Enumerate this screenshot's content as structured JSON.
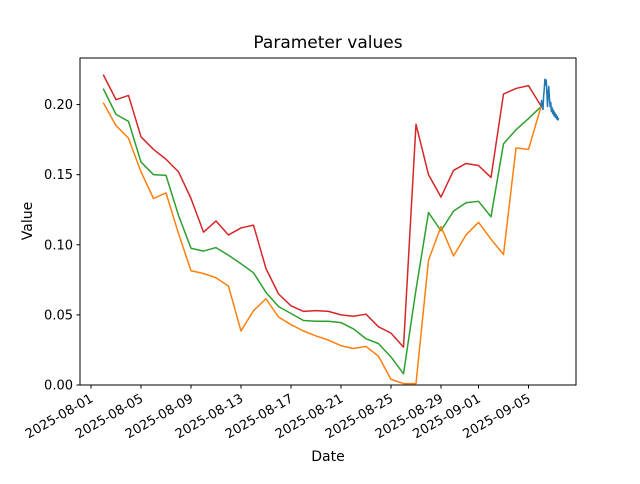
{
  "figure": {
    "title": "Parameter values",
    "xlabel": "Date",
    "ylabel": "Value"
  },
  "chart_data": {
    "type": "line",
    "title": "Parameter values",
    "xlabel": "Date",
    "ylabel": "Value",
    "grid": false,
    "legend": "none",
    "x_axis": {
      "origin_date": "2025-08-01",
      "unit": "days since 2025-08-01",
      "lim_days": [
        -0.88,
        38.8
      ],
      "tick_days": [
        0,
        4,
        8,
        12,
        16,
        20,
        24,
        28,
        31,
        35
      ],
      "tick_labels": [
        "2025-08-01",
        "2025-08-05",
        "2025-08-09",
        "2025-08-13",
        "2025-08-17",
        "2025-08-21",
        "2025-08-25",
        "2025-08-29",
        "2025-09-01",
        "2025-09-05"
      ],
      "tick_label_rotation_deg": 30
    },
    "y_axis": {
      "lim": [
        0,
        0.2332
      ],
      "ticks": [
        0,
        0.05,
        0.1,
        0.15,
        0.2
      ],
      "tick_labels": [
        "0.00",
        "0.05",
        "0.10",
        "0.15",
        "0.20"
      ]
    },
    "series": [
      {
        "name": "red-daily-series",
        "color": "#d62728",
        "x": [
          1,
          2,
          3,
          4,
          5,
          6,
          7,
          8,
          9,
          10,
          11,
          12,
          13,
          14,
          15,
          16,
          17,
          18,
          19,
          20,
          21,
          22,
          23,
          24,
          25,
          26,
          27,
          28,
          29,
          30,
          31,
          32,
          33,
          34,
          35,
          36
        ],
        "y": [
          0.221,
          0.2035,
          0.2065,
          0.177,
          0.168,
          0.161,
          0.152,
          0.133,
          0.109,
          0.117,
          0.107,
          0.112,
          0.114,
          0.083,
          0.065,
          0.0565,
          0.0525,
          0.053,
          0.0525,
          0.05,
          0.049,
          0.0505,
          0.0415,
          0.037,
          0.027,
          0.186,
          0.15,
          0.134,
          0.153,
          0.158,
          0.1565,
          0.148,
          0.2075,
          0.2115,
          0.2135,
          0.199
        ]
      },
      {
        "name": "green-daily-series",
        "color": "#2ca02c",
        "x": [
          1,
          2,
          3,
          4,
          5,
          6,
          7,
          8,
          9,
          10,
          11,
          12,
          13,
          14,
          15,
          16,
          17,
          18,
          19,
          20,
          21,
          22,
          23,
          24,
          25,
          26,
          27,
          28,
          29,
          30,
          31,
          32,
          33,
          34,
          35,
          36
        ],
        "y": [
          0.211,
          0.193,
          0.188,
          0.159,
          0.15,
          0.1495,
          0.121,
          0.0975,
          0.0955,
          0.098,
          0.0925,
          0.0865,
          0.08,
          0.066,
          0.056,
          0.051,
          0.046,
          0.0455,
          0.0455,
          0.0445,
          0.04,
          0.033,
          0.0295,
          0.02,
          0.008,
          0.068,
          0.123,
          0.11,
          0.124,
          0.13,
          0.131,
          0.12,
          0.172,
          0.182,
          0.19,
          0.1985
        ]
      },
      {
        "name": "orange-daily-series",
        "color": "#ff7f0e",
        "x": [
          1,
          2,
          3,
          4,
          5,
          6,
          7,
          8,
          9,
          10,
          11,
          12,
          13,
          14,
          15,
          16,
          17,
          18,
          19,
          20,
          21,
          22,
          23,
          24,
          25,
          26,
          27,
          28,
          29,
          30,
          31,
          32,
          33,
          34,
          35,
          36
        ],
        "y": [
          0.201,
          0.185,
          0.176,
          0.152,
          0.133,
          0.137,
          0.108,
          0.0815,
          0.0795,
          0.0765,
          0.0705,
          0.0385,
          0.053,
          0.0615,
          0.0485,
          0.043,
          0.0385,
          0.035,
          0.032,
          0.028,
          0.026,
          0.0275,
          0.0205,
          0.004,
          0.001,
          0.001,
          0.089,
          0.113,
          0.092,
          0.107,
          0.116,
          0.104,
          0.093,
          0.169,
          0.168,
          0.1985
        ]
      },
      {
        "name": "blue-highfreq-series",
        "color": "#1f77b4",
        "x": [
          36.0,
          36.05,
          36.1,
          36.16,
          36.21,
          36.26,
          36.31,
          36.36,
          36.42,
          36.47,
          36.52,
          36.57,
          36.62,
          36.68,
          36.73,
          36.78,
          36.83,
          36.88,
          36.94,
          36.99,
          37.04,
          37.09,
          37.14,
          37.2,
          37.25,
          37.3,
          37.35,
          37.4
        ],
        "y": [
          0.1995,
          0.203,
          0.198,
          0.1965,
          0.206,
          0.211,
          0.218,
          0.214,
          0.2175,
          0.208,
          0.1985,
          0.2075,
          0.213,
          0.204,
          0.1985,
          0.2015,
          0.195,
          0.198,
          0.1935,
          0.196,
          0.192,
          0.1945,
          0.191,
          0.193,
          0.1898,
          0.1915,
          0.189,
          0.19
        ]
      }
    ]
  }
}
